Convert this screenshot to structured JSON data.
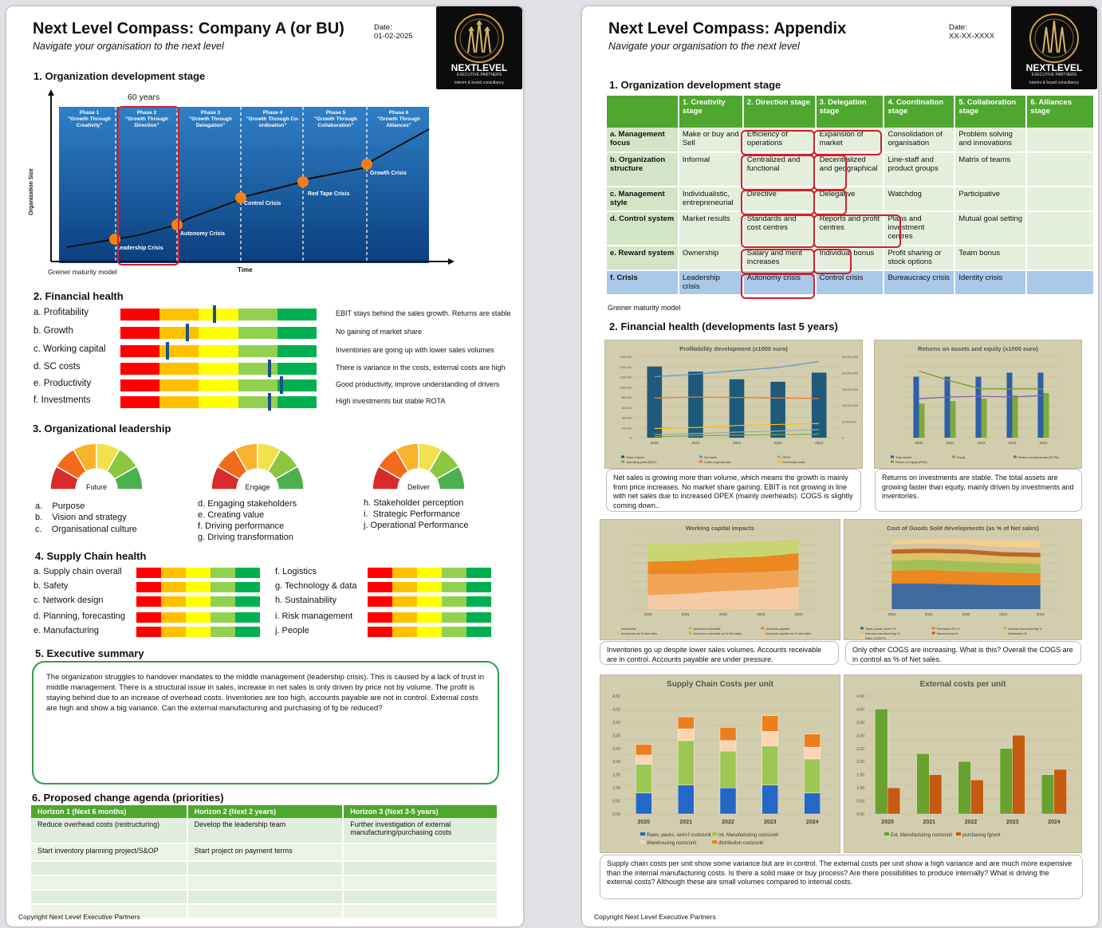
{
  "page1": {
    "title": "Next Level Compass: Company A (or BU)",
    "subtitle": "Navigate your organisation to the next level",
    "date_label": "Date:",
    "date_value": "01-02-2025",
    "logo": {
      "line1": "NEXTLEVEL",
      "line2": "EXECUTIVE PARTNERS",
      "line3": "Interim & board consultancy"
    },
    "section1": {
      "heading": "1. Organization development stage",
      "annotation": "60 years",
      "ylabel": "Organization Size",
      "xlabel": "Time",
      "caption": "Greiner maturity model",
      "phases": [
        {
          "name": "Phase 1",
          "desc": "\"Growth Through Creativity\""
        },
        {
          "name": "Phase 2",
          "desc": "\"Growth Through Direction\""
        },
        {
          "name": "Phase 3",
          "desc": "\"Growth Through Delegation\""
        },
        {
          "name": "Phase 4",
          "desc": "\"Growth Through Co-ordination\""
        },
        {
          "name": "Phase 5",
          "desc": "\"Growth Through Collaboration\""
        },
        {
          "name": "Phase 6",
          "desc": "\"Growth Through Alliances\""
        }
      ],
      "crises": [
        "Leadership Crisis",
        "Autonomy Crisis",
        "Control Crisis",
        "Red Tape Crisis",
        "Growth Crisis"
      ]
    },
    "section2": {
      "heading": "2. Financial health",
      "rows": [
        {
          "label": "a. Profitability",
          "score": 0.48,
          "note": "EBIT stays behind the sales growth. Returns are stable"
        },
        {
          "label": "b. Growth",
          "score": 0.34,
          "note": "No gaining of market share"
        },
        {
          "label": "c. Working capital",
          "score": 0.24,
          "note": "Inventories are going up with lower sales volumes"
        },
        {
          "label": "d. SC costs",
          "score": 0.76,
          "note": "There is variance in the costs, external costs are high"
        },
        {
          "label": "e. Productivity",
          "score": 0.82,
          "note": "Good productivity, improve understanding of drivers"
        },
        {
          "label": "f. Investments",
          "score": 0.76,
          "note": "High investments but stable ROTA"
        }
      ]
    },
    "section3": {
      "heading": "3. Organizational leadership",
      "gauges": [
        {
          "label": "Future",
          "items": [
            "a.    Purpose",
            "b.    Vision and strategy",
            "c.    Organisational culture"
          ]
        },
        {
          "label": "Engage",
          "items": [
            "d. Engaging stakeholders",
            "e. Creating value",
            "f. Driving performance",
            "g. Driving transformation"
          ]
        },
        {
          "label": "Deliver",
          "items": [
            "h. Stakeholder perception",
            "i.  Strategic Performance",
            "j. Operational Performance"
          ]
        }
      ]
    },
    "section4": {
      "heading": "4. Supply Chain health",
      "left": [
        "a. Supply chain overall",
        "b. Safety",
        "c. Network design",
        "d. Planning, forecasting",
        "e. Manufacturing"
      ],
      "right": [
        "f. Logistics",
        "g. Technology & data",
        "h. Sustainability",
        "i. Risk management",
        "j. People"
      ]
    },
    "section5": {
      "heading": "5. Executive summary",
      "text": "The organization struggles to handover mandates to the middle management (leadership crisis). This is caused by a lack of trust in middle management. There is a structural issue in sales, increase in net sales is only driven by price not by volume. The profit is staying behind due to an increase of overhead costs. Inventories are too high, accounts payable are not in control. External costs are high and show a big variance. Can the external manufacturing and purchasing of fg be reduced?"
    },
    "section6": {
      "heading": "6. Proposed change agenda (priorities)",
      "columns": [
        "Horizon 1 (Next 6 months)",
        "Horizon 2 (Next 2 years)",
        "Horizon 3 (Next 3-5 years)"
      ],
      "rows": [
        [
          "Reduce overhead costs (restructuring)",
          "Develop the leadership team",
          "Further investigation of external manufacturing/purchasing costs"
        ],
        [
          "Start inventory planning project/S&OP",
          "Start project on payment terms",
          ""
        ],
        [
          "",
          "",
          ""
        ],
        [
          "",
          "",
          ""
        ],
        [
          "",
          "",
          ""
        ],
        [
          "",
          "",
          ""
        ]
      ]
    },
    "copyright": "Copyright Next Level Executive Partners"
  },
  "page2": {
    "title": "Next Level Compass: Appendix",
    "subtitle": "Navigate your organisation to the next level",
    "date_label": "Date:",
    "date_value": "XX-XX-XXXX",
    "section1": {
      "heading": "1. Organization development stage",
      "columns": [
        "",
        "1. Creativity stage",
        "2. Direction stage",
        "3. Delegation stage",
        "4. Coordination stage",
        "5. Collaboration stage",
        "6. Alliances stage"
      ],
      "rows": [
        [
          "a. Management focus",
          "Make or buy and Sell",
          "Efficiency of operations",
          "Expansion of market",
          "Consolidation of organisation",
          "Problem solving and innovations",
          ""
        ],
        [
          "b. Organization structure",
          "Informal",
          "Centralized and functional",
          "Decentralized and geographical",
          "Line-staff and product groups",
          "Matrix of teams",
          ""
        ],
        [
          "c. Management style",
          "Individualistic, entrepreneurial",
          "Directive",
          "Delegative",
          "Watchdog",
          "Participative",
          ""
        ],
        [
          "d. Control system",
          "Market results",
          "Standards and cost centres",
          "Reports and profit centres",
          "Plans and investment centres",
          "Mutual goal setting",
          ""
        ],
        [
          "e. Reward system",
          "Ownership",
          "Salary and merit increases",
          "Individual bonus",
          "Profit sharing or stock options",
          "Team bonus",
          ""
        ],
        [
          "f. Crisis",
          "Leadership crisis",
          "Autonomy crisis",
          "Control crisis",
          "Bureaucracy crisis",
          "Identity crisis",
          ""
        ]
      ],
      "caption": "Greiner maturity model"
    },
    "section2": {
      "heading": "2. Financial health (developments last 5 years)",
      "comments": [
        "Net sales is growing more than volume, which means the growth is mainly from price increases. No market share gaining. EBIT is not growing in line with net sales due to increased OPEX (mainly overheads). COGS is slightly coming down..",
        "Returns on investments are stable. The total assets are growing faster than equity, mainly driven by investments and inventories.",
        "Inventories go up despite lower sales volumes. Accounts receivable are in control. Accounts payable are under pressure.",
        "Only other COGS are increasing. What is this? Overall the COGS are in control as % of Net sales.",
        "Supply chain costs per unit show some variance but are in control. The external costs per unit show a high variance and are much more expensive  than the internal manufacturing costs. Is there a solid make or buy process? Are there possibilities to produce internally? What is driving the external costs? Although these are small volumes compared to internal costs."
      ]
    },
    "copyright": "Copyright Next Level Executive Partners"
  },
  "chart_data": [
    {
      "type": "bar",
      "title": "Profitability development (x1000 euro)",
      "categories": [
        "2020",
        "2021",
        "2022",
        "2023",
        "2024"
      ],
      "yticks": [
        "0",
        "20,000",
        "40,000",
        "60,000",
        "80,000",
        "100,000",
        "120,000",
        "140,000",
        "160,000"
      ],
      "y2ticks": [
        "0",
        "5,000,000",
        "10,000,000",
        "15,000,000",
        "20,000,000",
        "25,000,000"
      ],
      "ylim": [
        0,
        160000
      ],
      "series": [
        {
          "name": "Sales volume",
          "values": [
            140000,
            130000,
            115000,
            110000,
            128000
          ]
        },
        {
          "name": "Net sales",
          "values": [
            120000,
            125000,
            132000,
            138000,
            150000
          ]
        },
        {
          "name": "OPEX",
          "values": [
            6000,
            8000,
            11000,
            13000,
            16000
          ]
        },
        {
          "name": "Operating profit (EBIT)",
          "values": [
            2000,
            4000,
            5000,
            6000,
            7000
          ]
        },
        {
          "name": "Costs of goods sold",
          "values": [
            78000,
            80000,
            79000,
            78000,
            77000
          ]
        },
        {
          "name": "Overheads costs",
          "values": [
            18000,
            20000,
            24000,
            26000,
            28000
          ]
        }
      ]
    },
    {
      "type": "bar",
      "title": "Returns on assets and equity (x1000 euro)",
      "categories": [
        "2020",
        "2021",
        "2022",
        "2023",
        "2024"
      ],
      "ylim": [
        0,
        100
      ],
      "series": [
        {
          "name": "Total assets",
          "values": [
            75,
            75,
            75,
            80,
            80
          ]
        },
        {
          "name": "Equity",
          "values": [
            42,
            45,
            48,
            52,
            55
          ]
        },
        {
          "name": "Return on total assets (ROTA)",
          "values": [
            48,
            50,
            51,
            50,
            52
          ]
        },
        {
          "name": "Return on equity (ROE)",
          "values": [
            82,
            70,
            60,
            60,
            60
          ]
        }
      ]
    },
    {
      "type": "area",
      "title": "Working capital impacts",
      "categories": [
        "2020",
        "2021",
        "2022",
        "2023",
        "2024"
      ],
      "series": [
        {
          "name": "Inventories",
          "values": [
            20,
            22,
            26,
            28,
            32
          ]
        },
        {
          "name": "Accounts receivable",
          "values": [
            30,
            28,
            26,
            25,
            24
          ]
        },
        {
          "name": "Accounts payable",
          "values": [
            -10,
            -12,
            -15,
            -18,
            -20
          ]
        },
        {
          "name": "Inventories as % Net sales",
          "values": [
            18,
            19,
            21,
            22,
            24
          ]
        },
        {
          "name": "Accounts receivable as % Net sales",
          "values": [
            25,
            24,
            22,
            21,
            20
          ]
        },
        {
          "name": "Accounts payable as % Net sales",
          "values": [
            -8,
            -9,
            -11,
            -12,
            -14
          ]
        }
      ]
    },
    {
      "type": "area",
      "title": "Cost of Goods Sold developments (as % of Net sales)",
      "categories": [
        "2020",
        "2021",
        "2022",
        "2023",
        "2024"
      ],
      "series": [
        {
          "name": "Raws, packs, semi-f %",
          "values": [
            30,
            30,
            29,
            28,
            28
          ]
        },
        {
          "name": "Purchased FG %",
          "values": [
            15,
            16,
            15,
            15,
            14
          ]
        },
        {
          "name": "Internal manufacturing %",
          "values": [
            12,
            12,
            12,
            11,
            11
          ]
        },
        {
          "name": "External manufacturing %",
          "values": [
            8,
            8,
            9,
            8,
            8
          ]
        },
        {
          "name": "Warehousing %",
          "values": [
            5,
            5,
            5,
            5,
            5
          ]
        },
        {
          "name": "Distribution %",
          "values": [
            6,
            6,
            6,
            6,
            6
          ]
        },
        {
          "name": "Other COGS %",
          "values": [
            4,
            5,
            6,
            7,
            8
          ]
        }
      ]
    },
    {
      "type": "bar",
      "title": "Supply Chain Costs per unit",
      "categories": [
        "2020",
        "2021",
        "2022",
        "2023",
        "2024"
      ],
      "yticks": [
        "0,00",
        "0,50",
        "1,00",
        "1,50",
        "2,00",
        "2,50",
        "3,00",
        "3,50",
        "4,00",
        "4,50"
      ],
      "ylim": [
        0,
        4.5
      ],
      "stacked": true,
      "series": [
        {
          "name": "Raws, packs, semi-f costs/unit",
          "values": [
            0.8,
            1.1,
            1.0,
            1.1,
            0.8
          ]
        },
        {
          "name": "Int. Manufacturing costs/unit",
          "values": [
            1.1,
            1.7,
            1.4,
            1.5,
            1.3
          ]
        },
        {
          "name": "Warehousing costs/unit",
          "values": [
            0.35,
            0.45,
            0.4,
            0.55,
            0.45
          ]
        },
        {
          "name": "distribution costs/unit",
          "values": [
            0.4,
            0.45,
            0.5,
            0.6,
            0.5
          ]
        }
      ]
    },
    {
      "type": "bar",
      "title": "External costs per unit",
      "categories": [
        "2020",
        "2021",
        "2022",
        "2023",
        "2024"
      ],
      "yticks": [
        "0,00",
        "0,50",
        "1,00",
        "1,50",
        "2,00",
        "2,50",
        "3,00",
        "3,50",
        "4,00",
        "4,50"
      ],
      "ylim": [
        0,
        4.5
      ],
      "series": [
        {
          "name": "Ext. Manufacturing costs/unit",
          "values": [
            4.0,
            2.3,
            2.0,
            2.5,
            1.5
          ]
        },
        {
          "name": "purchasing fg/unit",
          "values": [
            1.0,
            1.5,
            1.3,
            3.0,
            1.7
          ]
        }
      ]
    }
  ]
}
